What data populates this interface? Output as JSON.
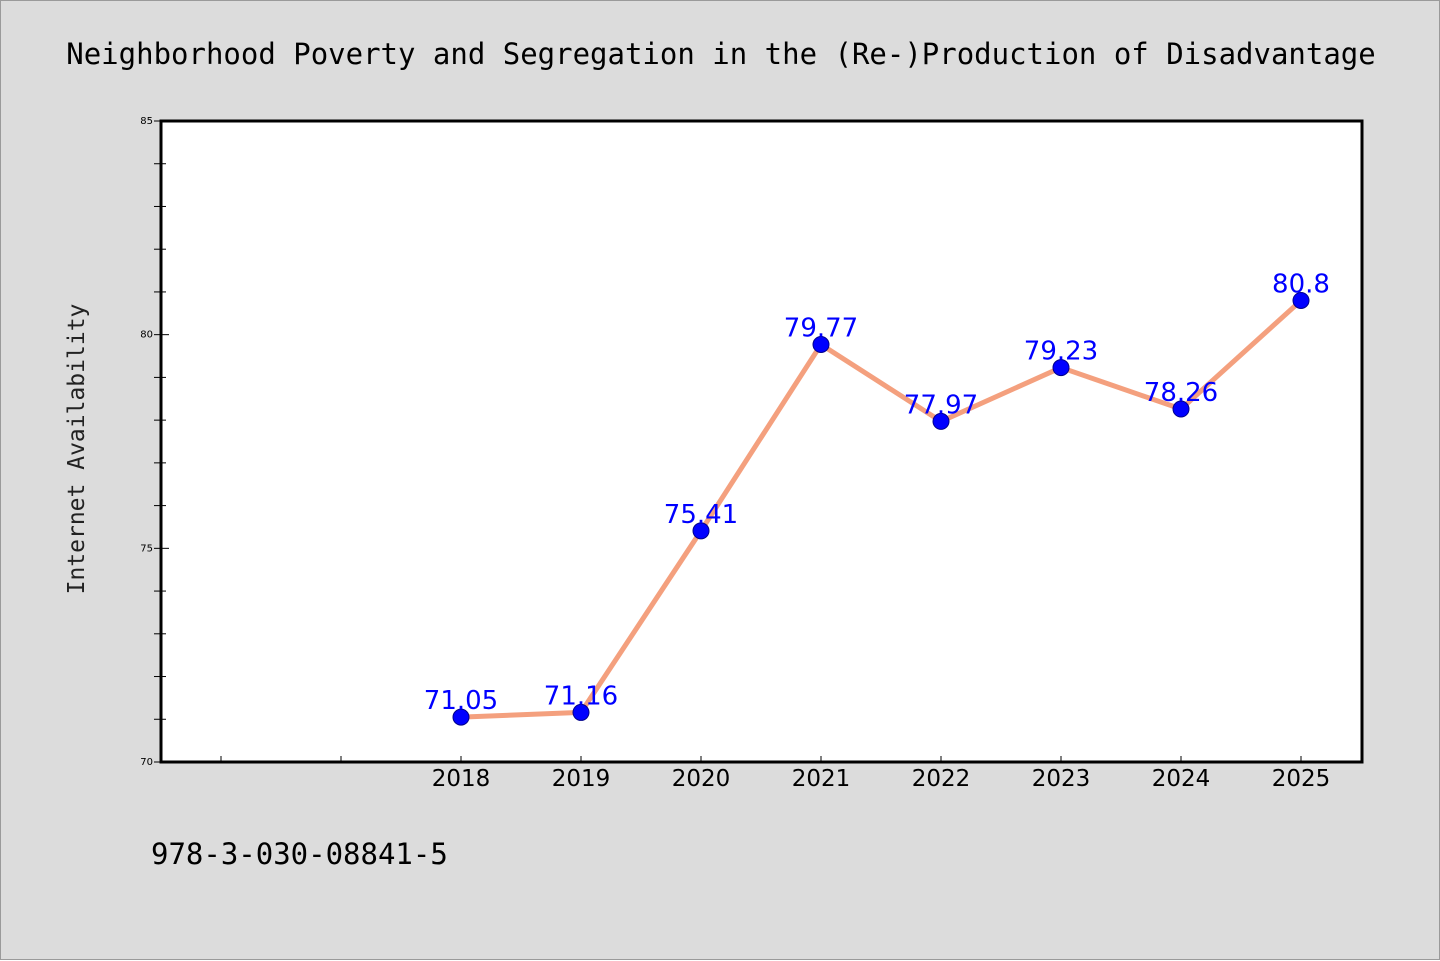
{
  "chart_data": {
    "type": "line",
    "title": "Neighborhood Poverty and Segregation in the (Re-)Production of Disadvantage",
    "xlabel": "",
    "ylabel": "Internet Availability",
    "categories": [
      "2018",
      "2019",
      "2020",
      "2021",
      "2022",
      "2023",
      "2024",
      "2025"
    ],
    "values": [
      71.05,
      71.16,
      75.41,
      79.77,
      77.97,
      79.23,
      78.26,
      80.8
    ],
    "data_labels": [
      "71.05",
      "71.16",
      "75.41",
      "79.77",
      "77.97",
      "79.23",
      "78.26",
      "80.8"
    ],
    "ylim": [
      70,
      85
    ],
    "y_ticks": [
      70,
      75,
      80,
      85
    ],
    "grid": false,
    "line_color": "#f4a07e",
    "marker_color": "#0000ff",
    "label_color": "#0000ff"
  },
  "footer": {
    "isbn": "978-3-030-08841-5"
  }
}
